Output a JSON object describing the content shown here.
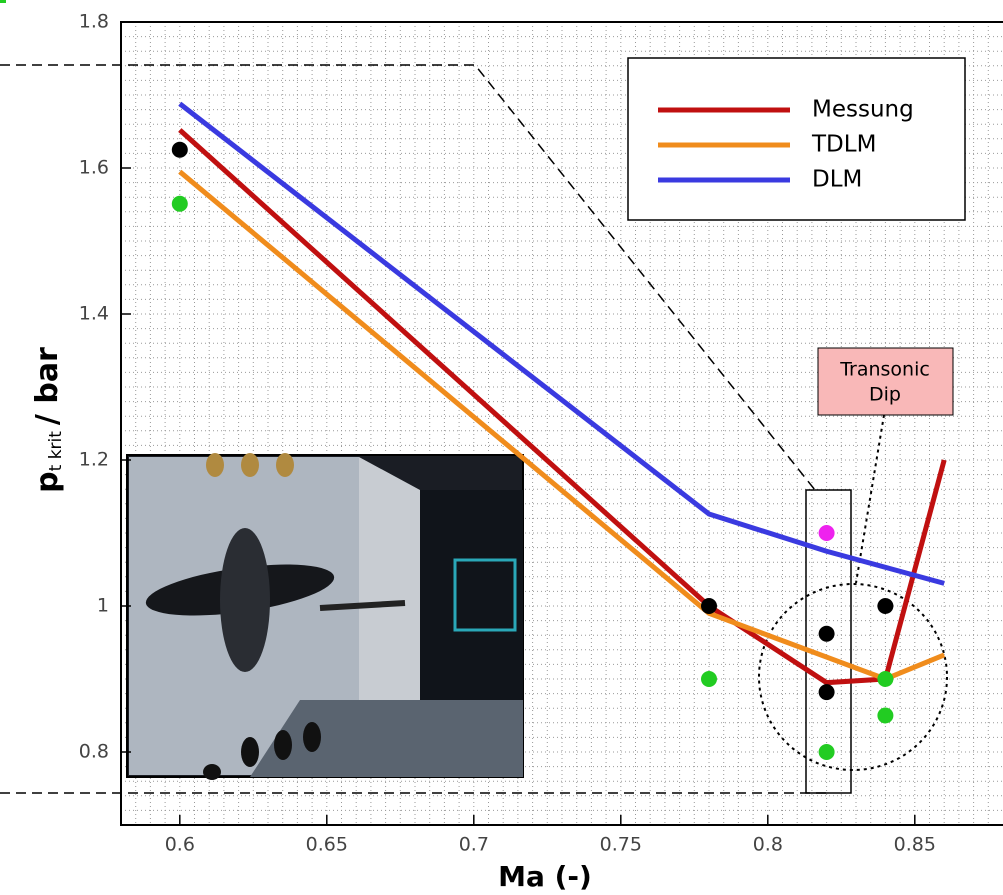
{
  "chart_data": {
    "type": "line",
    "xlabel": "Ma (-)",
    "ylabel": "p",
    "ylabel_sub": "t krit",
    "ylabel_unit": "/ bar",
    "xlim": [
      0.58,
      0.88
    ],
    "ylim": [
      0.7,
      1.8
    ],
    "xticks": [
      0.6,
      0.65,
      0.7,
      0.75,
      0.8,
      0.85
    ],
    "yticks": [
      0.8,
      1,
      1.2,
      1.4,
      1.6,
      1.8
    ],
    "grid": true,
    "grid_step_x": 0.005,
    "grid_step_y": 0.02,
    "legend": "upper right",
    "series": [
      {
        "name": "Messung",
        "color": "#c01010",
        "x": [
          0.6,
          0.78,
          0.82,
          0.84,
          0.86
        ],
        "values": [
          1.652,
          1.0,
          0.895,
          0.9,
          1.2
        ]
      },
      {
        "name": "TDLM",
        "color": "#f08c1c",
        "x": [
          0.6,
          0.78,
          0.84,
          0.86
        ],
        "values": [
          1.595,
          0.99,
          0.9,
          0.933
        ]
      },
      {
        "name": "DLM",
        "color": "#3a3ae0",
        "x": [
          0.6,
          0.78,
          0.82,
          0.86
        ],
        "values": [
          1.688,
          1.126,
          1.075,
          1.031
        ]
      }
    ],
    "markers": [
      {
        "color": "#000000",
        "x": [
          0.6,
          0.78,
          0.82,
          0.82,
          0.84
        ],
        "values": [
          1.625,
          1.0,
          0.962,
          0.882,
          1.0
        ]
      },
      {
        "color": "#22cc22",
        "x": [
          0.6,
          0.78,
          0.82,
          0.84,
          0.84
        ],
        "values": [
          1.551,
          0.9,
          0.8,
          0.9,
          0.85
        ]
      },
      {
        "color": "#ee22ee",
        "x": [
          0.82
        ],
        "values": [
          1.1
        ]
      }
    ],
    "annotation": [
      "Transonic",
      "Dip"
    ]
  }
}
